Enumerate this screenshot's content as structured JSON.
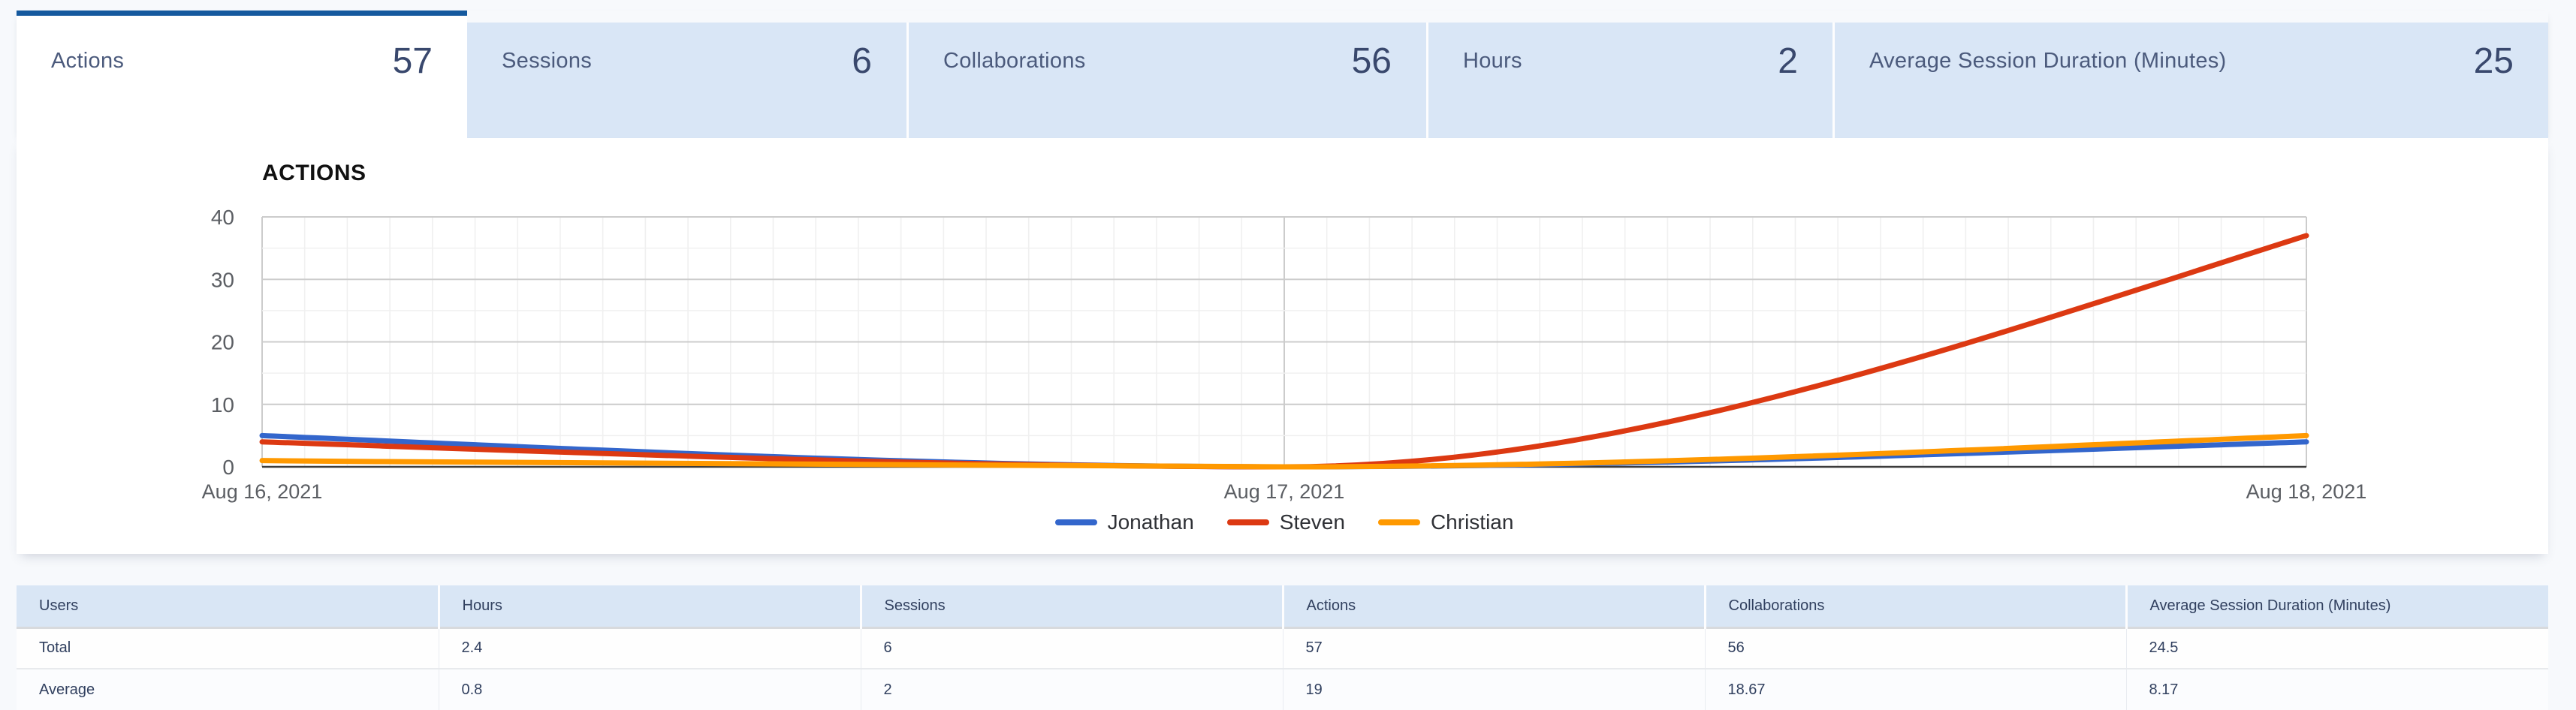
{
  "tabs": [
    {
      "label": "Actions",
      "value": "57",
      "active": true
    },
    {
      "label": "Sessions",
      "value": "6",
      "active": false
    },
    {
      "label": "Collaborations",
      "value": "56",
      "active": false
    },
    {
      "label": "Hours",
      "value": "2",
      "active": false
    },
    {
      "label": "Average Session Duration (Minutes)",
      "value": "25",
      "active": false
    }
  ],
  "chart_data": {
    "type": "line",
    "title": "ACTIONS",
    "x_labels": [
      "Aug 16, 2021",
      "Aug 17, 2021",
      "Aug 18, 2021"
    ],
    "yticks": [
      0,
      10,
      20,
      30,
      40
    ],
    "ylim": [
      0,
      40
    ],
    "grid": {
      "minor_vertical_per_day": 24,
      "minor_horizontal_step": 5,
      "legend_position": "bottom",
      "curve": "smooth"
    },
    "series": [
      {
        "name": "Jonathan",
        "color": "#3366CC",
        "values": [
          5,
          0,
          4
        ]
      },
      {
        "name": "Steven",
        "color": "#DC3912",
        "values": [
          4,
          0,
          37
        ]
      },
      {
        "name": "Christian",
        "color": "#FF9900",
        "values": [
          1,
          0,
          5
        ]
      }
    ]
  },
  "table": {
    "headers": [
      "Users",
      "Hours",
      "Sessions",
      "Actions",
      "Collaborations",
      "Average Session Duration (Minutes)"
    ],
    "rows": [
      {
        "label": "Total",
        "values": [
          "2.4",
          "6",
          "57",
          "56",
          "24.5"
        ]
      },
      {
        "label": "Average",
        "values": [
          "0.8",
          "2",
          "19",
          "18.67",
          "8.17"
        ]
      }
    ]
  },
  "colors": {
    "active_tab_border": "#15599e",
    "inactive_tab_bg": "#d9e6f6",
    "table_header_bg": "#d9e6f5",
    "axis_text": "#5b5e63",
    "major_grid": "#cccccc",
    "minor_grid": "#f0f0f0",
    "baseline": "#3c3c3c"
  }
}
